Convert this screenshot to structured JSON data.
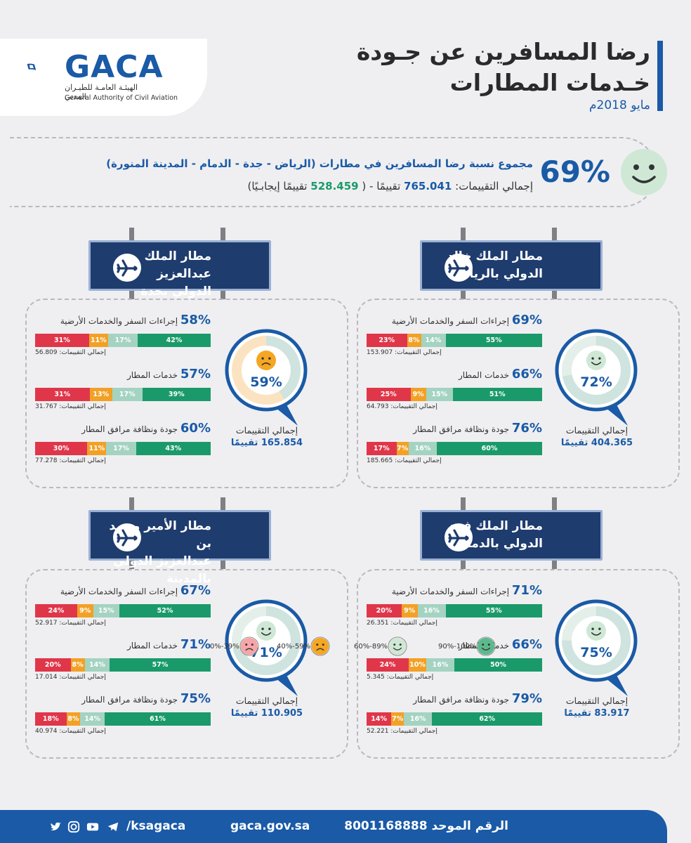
{
  "header": {
    "logo": {
      "name": "GACA",
      "ar": "الهيئـة العامـة للطيـران المدني",
      "en": "General Authority of Civil Aviation"
    },
    "title_l1": "رضا المسافرين عن جـودة",
    "title_l2": "خـدمات المطارات",
    "date": "مايو 2018م"
  },
  "summary": {
    "percent": "69%",
    "line1": "مجموع نسبة رضا المسافرين في مطارات (الرياض - جدة - الدمام - المدينة المنورة)",
    "line2_prefix": "إجمالي التقييمات:",
    "total": "765.041",
    "unit": "تقييمًا - (",
    "positive": "528.459",
    "positive_suffix": "تقييمًا إيجابـيًا)"
  },
  "airports": [
    {
      "name_l1": "مطار الملك خالد",
      "name_l2": "الدولي بالرياض",
      "score": "72%",
      "score_value": 72,
      "total_label": "إجمالي التقييمات",
      "total": "404.365 تقييمًا",
      "metrics": [
        {
          "pct": "69%",
          "label": "إجراءات السفر والخدمات الأرضية",
          "bars": [
            {
              "v": "55%"
            },
            {
              "v": "14%"
            },
            {
              "v": "8%"
            },
            {
              "v": "23%"
            }
          ],
          "total": "إجمالي التقييمات: 153.907"
        },
        {
          "pct": "66%",
          "label": "خدمات المطار",
          "bars": [
            {
              "v": "51%"
            },
            {
              "v": "15%"
            },
            {
              "v": "9%"
            },
            {
              "v": "25%"
            }
          ],
          "total": "إجمالي التقييمات: 64.793"
        },
        {
          "pct": "76%",
          "label": "جودة ونظافة مرافق المطار",
          "bars": [
            {
              "v": "60%"
            },
            {
              "v": "16%"
            },
            {
              "v": "7%"
            },
            {
              "v": "17%"
            }
          ],
          "total": "إجمالي التقييمات: 185.665"
        }
      ]
    },
    {
      "name_l1": "مطار الملك عبدالعزيز",
      "name_l2": "الدولي بجدة",
      "score": "59%",
      "score_value": 59,
      "total_label": "إجمالي التقييمات",
      "total": "165.854 تقييمًا",
      "metrics": [
        {
          "pct": "58%",
          "label": "إجراءات السفر والخدمات الأرضية",
          "bars": [
            {
              "v": "42%"
            },
            {
              "v": "17%"
            },
            {
              "v": "11%"
            },
            {
              "v": "31%"
            }
          ],
          "total": "إجمالي التقييمات: 56.809"
        },
        {
          "pct": "57%",
          "label": "خدمات المطار",
          "bars": [
            {
              "v": "39%"
            },
            {
              "v": "17%"
            },
            {
              "v": "13%"
            },
            {
              "v": "31%"
            }
          ],
          "total": "إجمالي التقييمات: 31.767"
        },
        {
          "pct": "60%",
          "label": "جودة ونظافة مرافق المطار",
          "bars": [
            {
              "v": "43%"
            },
            {
              "v": "17%"
            },
            {
              "v": "11%"
            },
            {
              "v": "30%"
            }
          ],
          "total": "إجمالي التقييمات: 77.278"
        }
      ]
    },
    {
      "name_l1": "مطار الملك فهد",
      "name_l2": "الدولي بالدمام",
      "score": "75%",
      "score_value": 75,
      "total_label": "إجمالي التقييمات",
      "total": "83.917 تقييمًا",
      "metrics": [
        {
          "pct": "71%",
          "label": "إجراءات السفر والخدمات الأرضية",
          "bars": [
            {
              "v": "55%"
            },
            {
              "v": "16%"
            },
            {
              "v": "9%"
            },
            {
              "v": "20%"
            }
          ],
          "total": "إجمالي التقييمات: 26.351"
        },
        {
          "pct": "66%",
          "label": "خدمات المطار",
          "bars": [
            {
              "v": "50%"
            },
            {
              "v": "16%"
            },
            {
              "v": "10%"
            },
            {
              "v": "24%"
            }
          ],
          "total": "إجمالي التقييمات: 5.345"
        },
        {
          "pct": "79%",
          "label": "جودة ونظافة مرافق المطار",
          "bars": [
            {
              "v": "62%"
            },
            {
              "v": "16%"
            },
            {
              "v": "7%"
            },
            {
              "v": "14%"
            }
          ],
          "total": "إجمالي التقييمات: 52.221"
        }
      ]
    },
    {
      "name_l1": "مطار الأمير محمد بن",
      "name_l2": "عبدالعزيز الدولي بالمدينة",
      "score": "71%",
      "score_value": 71,
      "total_label": "إجمالي التقييمات",
      "total": "110.905 تقييمًا",
      "metrics": [
        {
          "pct": "67%",
          "label": "إجراءات السفر والخدمات الأرضية",
          "bars": [
            {
              "v": "52%"
            },
            {
              "v": "15%"
            },
            {
              "v": "9%"
            },
            {
              "v": "24%"
            }
          ],
          "total": "إجمالي التقييمات: 52.917"
        },
        {
          "pct": "71%",
          "label": "خدمات المطار",
          "bars": [
            {
              "v": "57%"
            },
            {
              "v": "14%"
            },
            {
              "v": "8%"
            },
            {
              "v": "20%"
            }
          ],
          "total": "إجمالي التقييمات: 17.014"
        },
        {
          "pct": "75%",
          "label": "جودة ونظافة مرافق المطار",
          "bars": [
            {
              "v": "61%"
            },
            {
              "v": "14%"
            },
            {
              "v": "8%"
            },
            {
              "v": "18%"
            }
          ],
          "total": "إجمالي التقييمات: 40.974"
        }
      ]
    }
  ],
  "legend": [
    {
      "range": "90%-100%",
      "color": "#1a9a6a",
      "icon": "very-happy-face-icon"
    },
    {
      "range": "60%-89%",
      "color": "#a4d3c2",
      "icon": "smile-face-icon"
    },
    {
      "range": "40%-59%",
      "color": "#f2a126",
      "icon": "sad-face-icon"
    },
    {
      "range": "0%-39%",
      "color": "#e0364a",
      "icon": "angry-face-icon"
    }
  ],
  "footer": {
    "phone_label": "الرقم الموحد",
    "phone": "8001168888",
    "website": "gaca.gov.sa",
    "handle": "/ksagaca",
    "social_icons": [
      "twitter-icon",
      "instagram-icon",
      "youtube-icon",
      "telegram-icon"
    ]
  },
  "colors": {
    "primary": "#1a5aa6",
    "sign": "#1e3c6e",
    "green": "#1a9a6a",
    "light_green": "#a4d3c2",
    "yellow": "#f2a126",
    "red": "#e0364a"
  }
}
